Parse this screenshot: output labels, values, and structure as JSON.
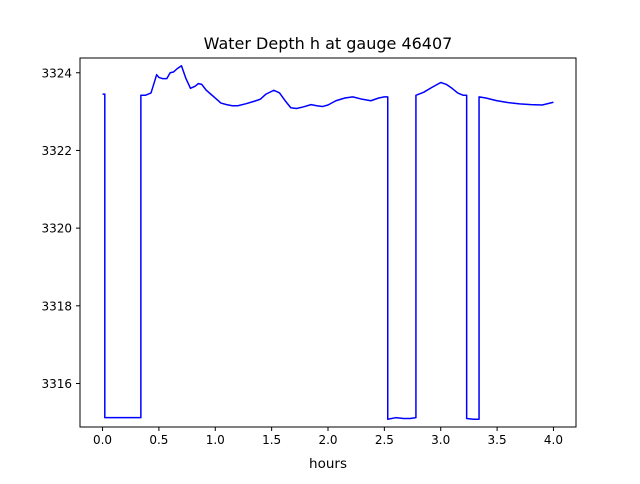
{
  "chart_data": {
    "type": "line",
    "title": "Water Depth h at gauge 46407",
    "xlabel": "hours",
    "ylabel": "",
    "xlim": [
      -0.2,
      4.2
    ],
    "ylim": [
      3314.88,
      3324.38
    ],
    "x_ticks": [
      0.0,
      0.5,
      1.0,
      1.5,
      2.0,
      2.5,
      3.0,
      3.5,
      4.0
    ],
    "x_tick_labels": [
      "0.0",
      "0.5",
      "1.0",
      "1.5",
      "2.0",
      "2.5",
      "3.0",
      "3.5",
      "4.0"
    ],
    "y_ticks": [
      3316,
      3318,
      3320,
      3322,
      3324
    ],
    "y_tick_labels": [
      "3316",
      "3318",
      "3320",
      "3322",
      "3324"
    ],
    "grid": false,
    "legend": "none",
    "series": [
      {
        "color": "#0000ff",
        "x": [
          0.0,
          0.02,
          0.02,
          0.1,
          0.2,
          0.3,
          0.34,
          0.34,
          0.38,
          0.43,
          0.48,
          0.5,
          0.53,
          0.57,
          0.6,
          0.63,
          0.66,
          0.7,
          0.74,
          0.78,
          0.82,
          0.85,
          0.88,
          0.92,
          0.96,
          1.0,
          1.05,
          1.1,
          1.15,
          1.2,
          1.27,
          1.35,
          1.4,
          1.45,
          1.52,
          1.57,
          1.62,
          1.67,
          1.72,
          1.78,
          1.85,
          1.9,
          1.95,
          2.0,
          2.07,
          2.15,
          2.22,
          2.3,
          2.38,
          2.45,
          2.5,
          2.53,
          2.53,
          2.6,
          2.67,
          2.73,
          2.78,
          2.78,
          2.85,
          2.92,
          3.0,
          3.05,
          3.1,
          3.15,
          3.2,
          3.23,
          3.23,
          3.29,
          3.34,
          3.34,
          3.4,
          3.5,
          3.6,
          3.7,
          3.8,
          3.9,
          4.0
        ],
        "y": [
          3323.45,
          3323.45,
          3315.12,
          3315.12,
          3315.12,
          3315.12,
          3315.12,
          3323.42,
          3323.42,
          3323.48,
          3323.95,
          3323.88,
          3323.85,
          3323.85,
          3324.0,
          3324.02,
          3324.1,
          3324.18,
          3323.85,
          3323.6,
          3323.65,
          3323.72,
          3323.7,
          3323.55,
          3323.45,
          3323.35,
          3323.22,
          3323.18,
          3323.15,
          3323.15,
          3323.2,
          3323.27,
          3323.32,
          3323.45,
          3323.55,
          3323.48,
          3323.28,
          3323.1,
          3323.08,
          3323.12,
          3323.18,
          3323.15,
          3323.13,
          3323.17,
          3323.28,
          3323.35,
          3323.38,
          3323.32,
          3323.28,
          3323.35,
          3323.38,
          3323.38,
          3315.08,
          3315.12,
          3315.1,
          3315.1,
          3315.12,
          3323.42,
          3323.5,
          3323.62,
          3323.75,
          3323.7,
          3323.6,
          3323.48,
          3323.42,
          3323.42,
          3315.1,
          3315.08,
          3315.08,
          3323.38,
          3323.35,
          3323.28,
          3323.23,
          3323.2,
          3323.18,
          3323.17,
          3323.24
        ]
      }
    ]
  }
}
